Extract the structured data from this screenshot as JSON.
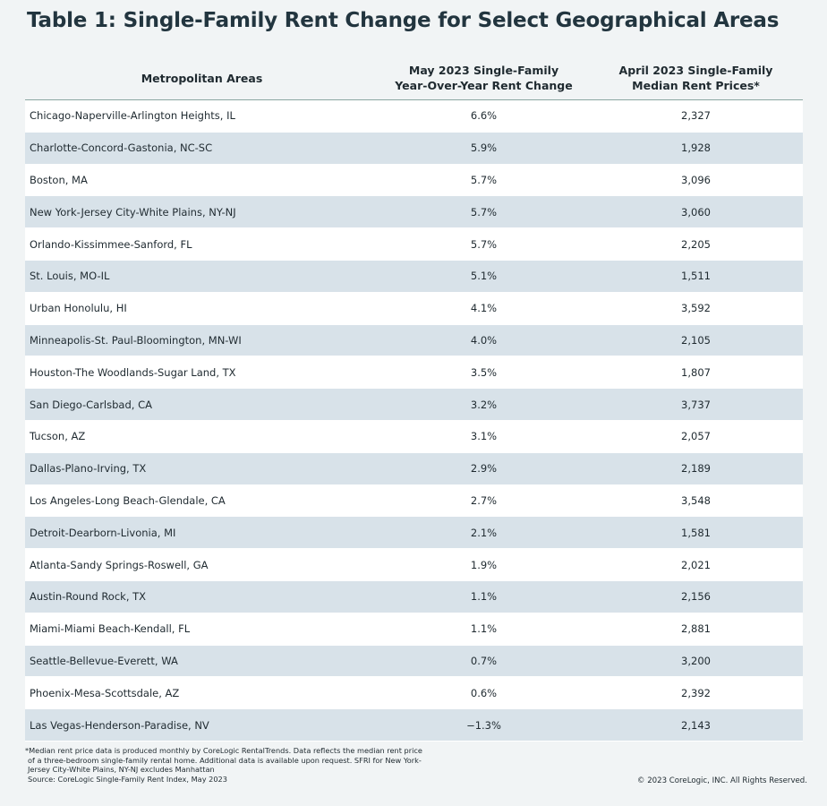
{
  "title": "Table 1: Single-Family Rent Change for Select Geographical Areas",
  "table": {
    "headers": {
      "area": "Metropolitan Areas",
      "change_line1": "May 2023 Single-Family",
      "change_line2": "Year-Over-Year Rent Change",
      "price_line1": "April 2023 Single-Family",
      "price_line2": "Median Rent Prices*"
    },
    "rows": [
      {
        "area": "Chicago-Naperville-Arlington Heights, IL",
        "change": "6.6%",
        "price": "2,327"
      },
      {
        "area": "Charlotte-Concord-Gastonia, NC-SC",
        "change": "5.9%",
        "price": "1,928"
      },
      {
        "area": "Boston, MA",
        "change": "5.7%",
        "price": "3,096"
      },
      {
        "area": "New York-Jersey City-White Plains, NY-NJ",
        "change": "5.7%",
        "price": "3,060"
      },
      {
        "area": "Orlando-Kissimmee-Sanford, FL",
        "change": "5.7%",
        "price": "2,205"
      },
      {
        "area": "St. Louis, MO-IL",
        "change": "5.1%",
        "price": "1,511"
      },
      {
        "area": "Urban Honolulu, HI",
        "change": "4.1%",
        "price": "3,592"
      },
      {
        "area": "Minneapolis-St. Paul-Bloomington, MN-WI",
        "change": "4.0%",
        "price": "2,105"
      },
      {
        "area": "Houston-The Woodlands-Sugar Land, TX",
        "change": "3.5%",
        "price": "1,807"
      },
      {
        "area": "San Diego-Carlsbad, CA",
        "change": "3.2%",
        "price": "3,737"
      },
      {
        "area": "Tucson, AZ",
        "change": "3.1%",
        "price": "2,057"
      },
      {
        "area": "Dallas-Plano-Irving, TX",
        "change": "2.9%",
        "price": "2,189"
      },
      {
        "area": "Los Angeles-Long Beach-Glendale, CA",
        "change": "2.7%",
        "price": "3,548"
      },
      {
        "area": "Detroit-Dearborn-Livonia, MI",
        "change": "2.1%",
        "price": "1,581"
      },
      {
        "area": "Atlanta-Sandy Springs-Roswell, GA",
        "change": "1.9%",
        "price": "2,021"
      },
      {
        "area": "Austin-Round Rock, TX",
        "change": "1.1%",
        "price": "2,156"
      },
      {
        "area": "Miami-Miami Beach-Kendall, FL",
        "change": "1.1%",
        "price": "2,881"
      },
      {
        "area": "Seattle-Bellevue-Everett, WA",
        "change": "0.7%",
        "price": "3,200"
      },
      {
        "area": "Phoenix-Mesa-Scottsdale, AZ",
        "change": "0.6%",
        "price": "2,392"
      },
      {
        "area": "Las Vegas-Henderson-Paradise, NV",
        "change": "−1.3%",
        "price": "2,143"
      }
    ]
  },
  "footnote": {
    "line1": "*Median rent price data is produced monthly by CoreLogic RentalTrends. Data reflects the median rent price",
    "line2": "of a three-bedroom single-family rental home. Additional data is available upon request. SFRI for New York-",
    "line3": "Jersey City-White Plains, NY-NJ excludes Manhattan",
    "line4": "Source: CoreLogic Single-Family Rent Index, May 2023"
  },
  "copyright": "© 2023 CoreLogic, INC. All Rights Reserved.",
  "colors": {
    "background": "#f1f4f5",
    "row_alt": "#d8e2e9",
    "row_plain": "#ffffff",
    "title": "#22353f",
    "header_rule": "#8aa6a1"
  }
}
